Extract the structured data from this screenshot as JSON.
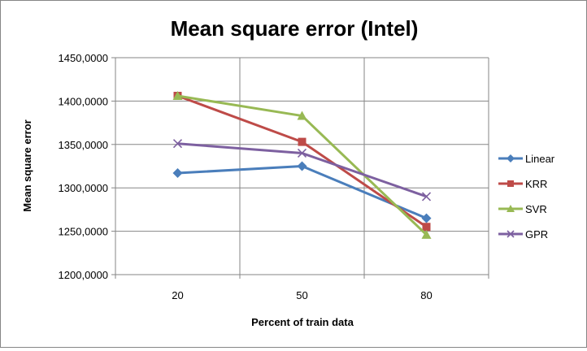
{
  "chart_data": {
    "type": "line",
    "title": "Mean square error (Intel)",
    "xlabel": "Percent of train data",
    "ylabel": "Mean square error",
    "categories": [
      "20",
      "50",
      "80"
    ],
    "ylim": [
      1200,
      1450
    ],
    "yticks": [
      1200,
      1250,
      1300,
      1350,
      1400,
      1450
    ],
    "ytick_labels": [
      "1200,0000",
      "1250,0000",
      "1300,0000",
      "1350,0000",
      "1400,0000",
      "1450,0000"
    ],
    "grid": true,
    "legend_position": "right",
    "series": [
      {
        "name": "Linear",
        "values": [
          1317,
          1325,
          1265
        ],
        "color": "#4a7ebb",
        "marker": "diamond"
      },
      {
        "name": "KRR",
        "values": [
          1406,
          1353,
          1255
        ],
        "color": "#be4b48",
        "marker": "square"
      },
      {
        "name": "SVR",
        "values": [
          1406,
          1383,
          1246
        ],
        "color": "#98b954",
        "marker": "triangle"
      },
      {
        "name": "GPR",
        "values": [
          1351,
          1340,
          1290
        ],
        "color": "#7d60a0",
        "marker": "x"
      }
    ]
  }
}
